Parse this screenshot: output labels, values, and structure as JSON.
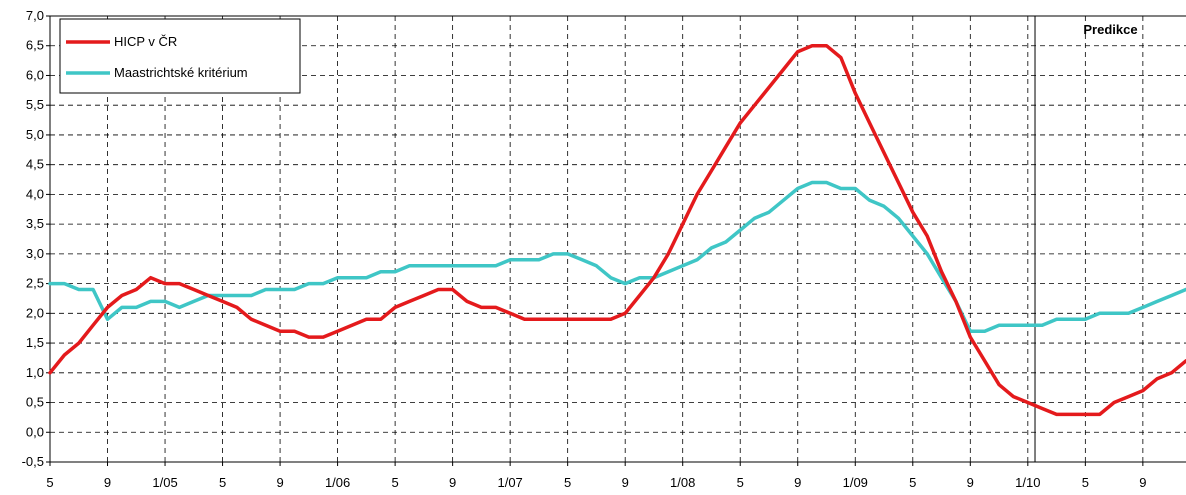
{
  "chart_data": {
    "type": "line",
    "grid": true,
    "legend_position": "top-left",
    "ylim": [
      -0.5,
      7.0
    ],
    "yticks": [
      "-0,5",
      "0,0",
      "0,5",
      "1,0",
      "1,5",
      "2,0",
      "2,5",
      "3,0",
      "3,5",
      "4,0",
      "4,5",
      "5,0",
      "5,5",
      "6,0",
      "6,5",
      "7,0"
    ],
    "x_tick_labels": [
      "5",
      "9",
      "1/05",
      "5",
      "9",
      "1/06",
      "5",
      "9",
      "1/07",
      "5",
      "9",
      "1/08",
      "5",
      "9",
      "1/09",
      "5",
      "9",
      "1/10",
      "5",
      "9"
    ],
    "forecast_label": "Predikce",
    "forecast_start_index": 69,
    "series": [
      {
        "name": "HICP v ČR",
        "color": "#e41a1c",
        "values": [
          1.0,
          1.3,
          1.5,
          1.8,
          2.1,
          2.3,
          2.4,
          2.6,
          2.5,
          2.5,
          2.4,
          2.3,
          2.2,
          2.1,
          1.9,
          1.8,
          1.7,
          1.7,
          1.6,
          1.6,
          1.7,
          1.8,
          1.9,
          1.9,
          2.1,
          2.2,
          2.3,
          2.4,
          2.4,
          2.2,
          2.1,
          2.1,
          2.0,
          1.9,
          1.9,
          1.9,
          1.9,
          1.9,
          1.9,
          1.9,
          2.0,
          2.3,
          2.6,
          3.0,
          3.5,
          4.0,
          4.4,
          4.8,
          5.2,
          5.5,
          5.8,
          6.1,
          6.4,
          6.5,
          6.5,
          6.3,
          5.7,
          5.2,
          4.7,
          4.2,
          3.7,
          3.3,
          2.7,
          2.2,
          1.6,
          1.2,
          0.8,
          0.6,
          0.5,
          0.4,
          0.3,
          0.3,
          0.3,
          0.3,
          0.5,
          0.6,
          0.7,
          0.9,
          1.0,
          1.2
        ]
      },
      {
        "name": "Maastrichtské kritérium",
        "color": "#3fc6c6",
        "values": [
          2.5,
          2.5,
          2.4,
          2.4,
          1.9,
          2.1,
          2.1,
          2.2,
          2.2,
          2.1,
          2.2,
          2.3,
          2.3,
          2.3,
          2.3,
          2.4,
          2.4,
          2.4,
          2.5,
          2.5,
          2.6,
          2.6,
          2.6,
          2.7,
          2.7,
          2.8,
          2.8,
          2.8,
          2.8,
          2.8,
          2.8,
          2.8,
          2.9,
          2.9,
          2.9,
          3.0,
          3.0,
          2.9,
          2.8,
          2.6,
          2.5,
          2.6,
          2.6,
          2.7,
          2.8,
          2.9,
          3.1,
          3.2,
          3.4,
          3.6,
          3.7,
          3.9,
          4.1,
          4.2,
          4.2,
          4.1,
          4.1,
          3.9,
          3.8,
          3.6,
          3.3,
          3.0,
          2.6,
          2.2,
          1.7,
          1.7,
          1.8,
          1.8,
          1.8,
          1.8,
          1.9,
          1.9,
          1.9,
          2.0,
          2.0,
          2.0,
          2.1,
          2.2,
          2.3,
          2.4,
          2.5,
          2.6
        ]
      }
    ]
  }
}
